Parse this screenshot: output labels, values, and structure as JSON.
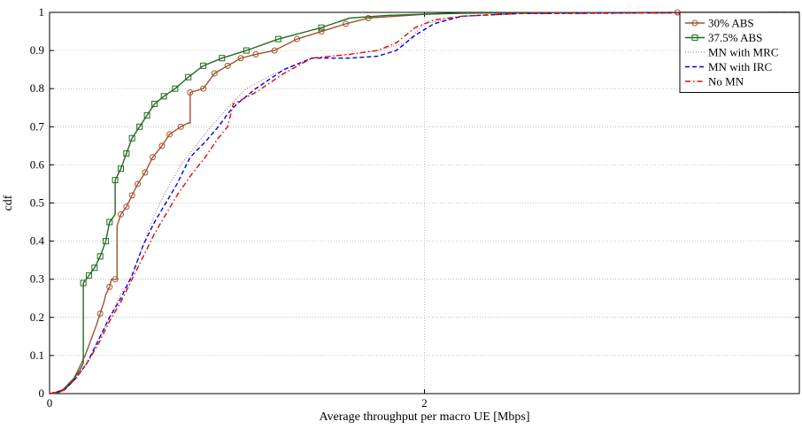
{
  "chart_data": {
    "type": "line",
    "title": "",
    "xlabel": "Average throughput per macro UE [Mbps]",
    "ylabel": "cdf",
    "xlim": [
      0,
      4
    ],
    "ylim": [
      0,
      1
    ],
    "xticks": [
      0,
      2
    ],
    "xtick_labels": [
      "0",
      "2"
    ],
    "yticks": [
      0,
      0.1,
      0.2,
      0.3,
      0.4,
      0.5,
      0.6,
      0.7,
      0.8,
      0.9,
      1
    ],
    "ytick_labels": [
      "0",
      "0.1",
      "0.2",
      "0.3",
      "0.4",
      "0.5",
      "0.6",
      "0.7",
      "0.8",
      "0.9",
      "1"
    ],
    "grid": true,
    "legend_position": "top-right",
    "series": [
      {
        "name": "30% ABS",
        "color": "#a0522d",
        "dash": "solid",
        "marker": "circle",
        "markers_x": [
          0.27,
          0.32,
          0.35,
          0.38,
          0.41,
          0.44,
          0.47,
          0.51,
          0.55,
          0.6,
          0.64,
          0.7,
          0.75,
          0.82,
          0.88,
          0.95,
          1.02,
          1.1,
          1.2,
          1.32,
          1.45,
          1.58,
          1.7,
          3.35
        ],
        "points": [
          [
            0,
            0
          ],
          [
            0.05,
            0.003
          ],
          [
            0.08,
            0.01
          ],
          [
            0.1,
            0.02
          ],
          [
            0.13,
            0.04
          ],
          [
            0.16,
            0.07
          ],
          [
            0.19,
            0.1
          ],
          [
            0.22,
            0.14
          ],
          [
            0.25,
            0.18
          ],
          [
            0.27,
            0.21
          ],
          [
            0.29,
            0.24
          ],
          [
            0.3,
            0.26
          ],
          [
            0.32,
            0.28
          ],
          [
            0.33,
            0.3
          ],
          [
            0.36,
            0.3
          ],
          [
            0.36,
            0.44
          ],
          [
            0.38,
            0.47
          ],
          [
            0.41,
            0.49
          ],
          [
            0.44,
            0.52
          ],
          [
            0.47,
            0.55
          ],
          [
            0.51,
            0.58
          ],
          [
            0.55,
            0.62
          ],
          [
            0.6,
            0.65
          ],
          [
            0.64,
            0.68
          ],
          [
            0.7,
            0.7
          ],
          [
            0.74,
            0.71
          ],
          [
            0.75,
            0.71
          ],
          [
            0.75,
            0.79
          ],
          [
            0.82,
            0.8
          ],
          [
            0.88,
            0.84
          ],
          [
            0.95,
            0.86
          ],
          [
            1.02,
            0.88
          ],
          [
            1.1,
            0.89
          ],
          [
            1.2,
            0.9
          ],
          [
            1.32,
            0.93
          ],
          [
            1.45,
            0.95
          ],
          [
            1.58,
            0.97
          ],
          [
            1.7,
            0.985
          ],
          [
            1.85,
            0.99
          ],
          [
            2.0,
            0.995
          ],
          [
            2.2,
            0.998
          ],
          [
            2.5,
            0.999
          ],
          [
            3.35,
            1.0
          ],
          [
            4.0,
            1.0
          ]
        ]
      },
      {
        "name": "37.5% ABS",
        "color": "#1e6b1e",
        "dash": "solid",
        "marker": "square",
        "markers_x": [
          0.18,
          0.21,
          0.24,
          0.27,
          0.3,
          0.32,
          0.35,
          0.38,
          0.41,
          0.44,
          0.48,
          0.52,
          0.56,
          0.61,
          0.67,
          0.74,
          0.82,
          0.92,
          1.05,
          1.22,
          1.45
        ],
        "points": [
          [
            0,
            0
          ],
          [
            0.04,
            0.003
          ],
          [
            0.07,
            0.01
          ],
          [
            0.1,
            0.025
          ],
          [
            0.13,
            0.04
          ],
          [
            0.16,
            0.06
          ],
          [
            0.18,
            0.08
          ],
          [
            0.18,
            0.29
          ],
          [
            0.21,
            0.31
          ],
          [
            0.24,
            0.33
          ],
          [
            0.27,
            0.36
          ],
          [
            0.3,
            0.4
          ],
          [
            0.32,
            0.45
          ],
          [
            0.35,
            0.47
          ],
          [
            0.35,
            0.56
          ],
          [
            0.38,
            0.59
          ],
          [
            0.41,
            0.63
          ],
          [
            0.44,
            0.67
          ],
          [
            0.48,
            0.7
          ],
          [
            0.52,
            0.73
          ],
          [
            0.56,
            0.76
          ],
          [
            0.61,
            0.78
          ],
          [
            0.67,
            0.8
          ],
          [
            0.74,
            0.83
          ],
          [
            0.82,
            0.86
          ],
          [
            0.92,
            0.88
          ],
          [
            1.05,
            0.9
          ],
          [
            1.22,
            0.93
          ],
          [
            1.45,
            0.96
          ],
          [
            1.6,
            0.985
          ],
          [
            1.8,
            0.992
          ],
          [
            2.1,
            0.997
          ],
          [
            2.5,
            0.999
          ],
          [
            4.0,
            1.0
          ]
        ]
      },
      {
        "name": "MN with MRC",
        "color": "#b06060",
        "dash": "dotted",
        "marker": "none",
        "points": [
          [
            0,
            0
          ],
          [
            0.08,
            0.01
          ],
          [
            0.14,
            0.04
          ],
          [
            0.2,
            0.08
          ],
          [
            0.26,
            0.14
          ],
          [
            0.32,
            0.2
          ],
          [
            0.38,
            0.26
          ],
          [
            0.44,
            0.31
          ],
          [
            0.5,
            0.39
          ],
          [
            0.56,
            0.47
          ],
          [
            0.62,
            0.53
          ],
          [
            0.7,
            0.6
          ],
          [
            0.78,
            0.65
          ],
          [
            0.86,
            0.7
          ],
          [
            0.95,
            0.75
          ],
          [
            1.05,
            0.8
          ],
          [
            1.2,
            0.84
          ],
          [
            1.4,
            0.88
          ],
          [
            1.6,
            0.89
          ],
          [
            1.75,
            0.9
          ],
          [
            1.9,
            0.92
          ],
          [
            2.0,
            0.97
          ],
          [
            2.2,
            0.99
          ],
          [
            2.6,
            0.998
          ],
          [
            4.0,
            1.0
          ]
        ]
      },
      {
        "name": "MN with IRC",
        "color": "#0000ee",
        "dash": "dashed",
        "marker": "none",
        "points": [
          [
            0,
            0
          ],
          [
            0.08,
            0.01
          ],
          [
            0.14,
            0.04
          ],
          [
            0.2,
            0.08
          ],
          [
            0.26,
            0.14
          ],
          [
            0.32,
            0.2
          ],
          [
            0.38,
            0.25
          ],
          [
            0.44,
            0.31
          ],
          [
            0.5,
            0.39
          ],
          [
            0.56,
            0.45
          ],
          [
            0.62,
            0.5
          ],
          [
            0.68,
            0.55
          ],
          [
            0.75,
            0.62
          ],
          [
            0.83,
            0.66
          ],
          [
            0.9,
            0.7
          ],
          [
            0.96,
            0.74
          ],
          [
            1.0,
            0.76
          ],
          [
            1.1,
            0.8
          ],
          [
            1.25,
            0.85
          ],
          [
            1.4,
            0.88
          ],
          [
            1.6,
            0.88
          ],
          [
            1.75,
            0.885
          ],
          [
            1.85,
            0.9
          ],
          [
            1.95,
            0.94
          ],
          [
            2.05,
            0.97
          ],
          [
            2.2,
            0.99
          ],
          [
            2.5,
            0.997
          ],
          [
            4.0,
            1.0
          ]
        ]
      },
      {
        "name": "No MN",
        "color": "#ee0000",
        "dash": "dashdot",
        "marker": "none",
        "points": [
          [
            0,
            0
          ],
          [
            0.08,
            0.01
          ],
          [
            0.14,
            0.04
          ],
          [
            0.2,
            0.08
          ],
          [
            0.26,
            0.13
          ],
          [
            0.32,
            0.19
          ],
          [
            0.38,
            0.24
          ],
          [
            0.44,
            0.3
          ],
          [
            0.5,
            0.36
          ],
          [
            0.56,
            0.42
          ],
          [
            0.62,
            0.47
          ],
          [
            0.68,
            0.52
          ],
          [
            0.75,
            0.57
          ],
          [
            0.83,
            0.62
          ],
          [
            0.9,
            0.67
          ],
          [
            0.95,
            0.7
          ],
          [
            0.98,
            0.76
          ],
          [
            1.1,
            0.79
          ],
          [
            1.25,
            0.84
          ],
          [
            1.4,
            0.88
          ],
          [
            1.6,
            0.89
          ],
          [
            1.75,
            0.9
          ],
          [
            1.85,
            0.92
          ],
          [
            1.95,
            0.96
          ],
          [
            2.05,
            0.98
          ],
          [
            2.2,
            0.99
          ],
          [
            2.5,
            0.997
          ],
          [
            4.0,
            1.0
          ]
        ]
      }
    ]
  }
}
